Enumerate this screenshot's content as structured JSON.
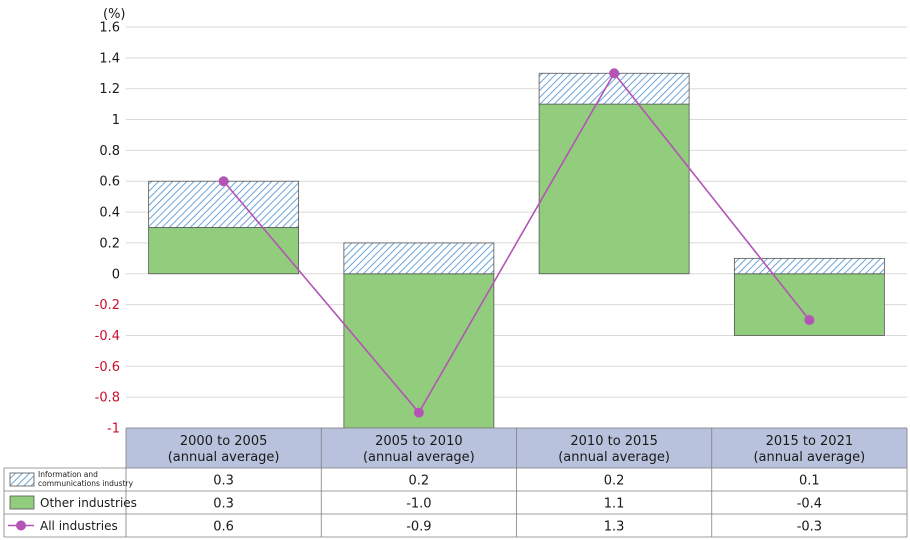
{
  "chart_data": {
    "type": "bar",
    "stacked": true,
    "unit": "(%)",
    "categories": [
      [
        "2000 to 2005",
        "(annual average)"
      ],
      [
        "2005 to 2010",
        "(annual average)"
      ],
      [
        "2010 to 2015",
        "(annual average)"
      ],
      [
        "2015 to 2021",
        "(annual average)"
      ]
    ],
    "ylim": [
      -1,
      1.6
    ],
    "yticks": [
      "1.6",
      "1.4",
      "1.2",
      "1",
      "0.8",
      "0.6",
      "0.4",
      "0.2",
      "0",
      "-0.2",
      "-0.4",
      "-0.6",
      "-0.8",
      "-1"
    ],
    "ytick_values": [
      1.6,
      1.4,
      1.2,
      1,
      0.8,
      0.6,
      0.4,
      0.2,
      0,
      -0.2,
      -0.4,
      -0.6,
      -0.8,
      -1
    ],
    "negative_tick_color": "#c8102e",
    "grid": true,
    "series": [
      {
        "name": "Information and communications industry",
        "name_lines": [
          "Information and",
          "communications industry"
        ],
        "kind": "bar-hatched",
        "color": "#5b9bd5",
        "values": [
          0.3,
          0.2,
          0.2,
          0.1
        ],
        "labels": [
          "0.3",
          "0.2",
          "0.2",
          "0.1"
        ]
      },
      {
        "name": "Other industries",
        "kind": "bar",
        "color": "#92cd7e",
        "values": [
          0.3,
          -1.0,
          1.1,
          -0.4
        ],
        "labels": [
          "0.3",
          "-1.0",
          "1.1",
          "-0.4"
        ]
      },
      {
        "name": "All industries",
        "kind": "line",
        "color": "#b454b4",
        "values": [
          0.6,
          -0.9,
          1.3,
          -0.3
        ],
        "labels": [
          "0.6",
          "-0.9",
          "1.3",
          "-0.3"
        ]
      }
    ],
    "table_header_color": "#b8c2dc"
  }
}
